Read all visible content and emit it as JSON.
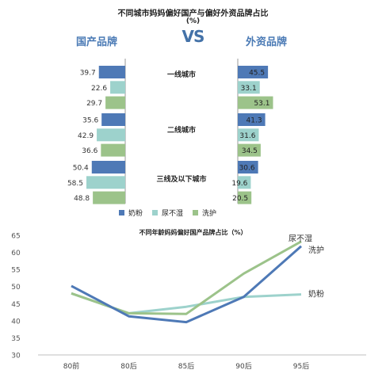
{
  "chart_data": [
    {
      "type": "bar",
      "orientation": "horizontal-butterfly",
      "title": "不同城市妈妈偏好国产与偏好外资品牌占比",
      "unit": "(%)",
      "vs_label": "VS",
      "left_title": "国产品牌",
      "right_title": "外资品牌",
      "categories": [
        "一线城市",
        "二线城市",
        "三线及以下城市"
      ],
      "series": [
        {
          "name": "奶粉",
          "color": "#4e79b6",
          "domestic": [
            39.7,
            35.6,
            50.4
          ],
          "foreign": [
            45.5,
            41.3,
            30.6
          ]
        },
        {
          "name": "尿不湿",
          "color": "#9dd2cc",
          "domestic": [
            22.6,
            42.9,
            58.5
          ],
          "foreign": [
            33.1,
            31.6,
            19.6
          ]
        },
        {
          "name": "洗护",
          "color": "#9cc38a",
          "domestic": [
            29.7,
            36.6,
            48.8
          ],
          "foreign": [
            53.1,
            34.5,
            20.5
          ]
        }
      ],
      "legend_placement": "bottom"
    },
    {
      "type": "line",
      "title": "不同年龄妈妈偏好国产品牌占比（%）",
      "categories": [
        "80前",
        "80后",
        "85后",
        "90后",
        "95后"
      ],
      "ylim": [
        30,
        65
      ],
      "yticks": [
        30,
        35,
        40,
        45,
        50,
        55,
        60,
        65
      ],
      "series": [
        {
          "name": "奶粉",
          "color": "#4e79b6",
          "values": [
            50.2,
            41.3,
            39.6,
            47.0,
            61.8
          ]
        },
        {
          "name": "尿不湿",
          "color": "#9dd2cc",
          "values": [
            48.0,
            42.2,
            44.1,
            47.0,
            47.7
          ]
        },
        {
          "name": "洗护",
          "color": "#9cc38a",
          "values": [
            48.0,
            42.2,
            42.0,
            53.8,
            63.2
          ]
        }
      ],
      "line_labels": [
        "尿不湿",
        "洗护",
        "奶粉"
      ],
      "grid": false
    }
  ]
}
